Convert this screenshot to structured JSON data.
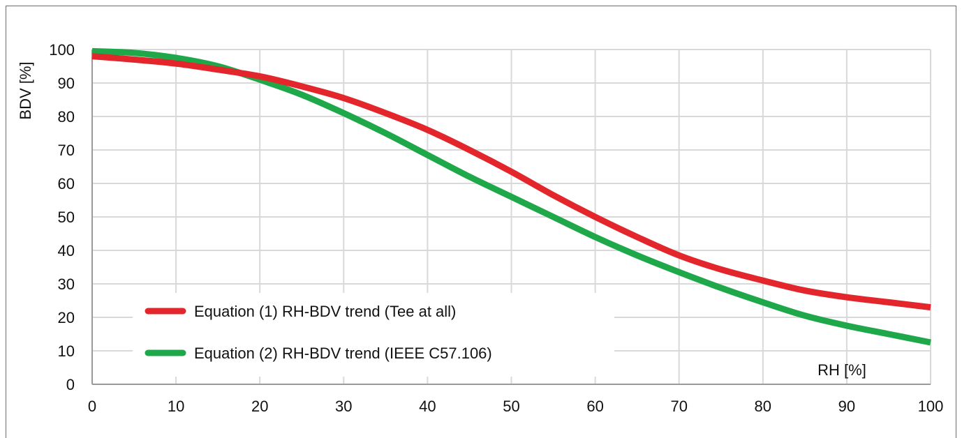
{
  "chart_data": {
    "type": "line",
    "xlabel": "RH [%]",
    "ylabel": "BDV [%]",
    "xlim": [
      0,
      100
    ],
    "ylim": [
      0,
      100
    ],
    "xticks": [
      "0",
      "10",
      "20",
      "30",
      "40",
      "50",
      "60",
      "70",
      "80",
      "90",
      "100"
    ],
    "yticks": [
      "0",
      "10",
      "20",
      "30",
      "40",
      "50",
      "60",
      "70",
      "80",
      "90",
      "100"
    ],
    "grid": true,
    "legend_position": "bottom-left",
    "x": [
      0,
      5,
      10,
      15,
      20,
      25,
      30,
      35,
      40,
      45,
      50,
      55,
      60,
      65,
      70,
      75,
      80,
      85,
      90,
      95,
      100
    ],
    "series": [
      {
        "name": "Equation (1) RH-BDV trend (Tee at all)",
        "color": "#e3262b",
        "values": [
          98,
          97,
          95.8,
          94,
          92,
          89,
          85.5,
          81,
          76,
          70,
          63.5,
          56.5,
          50,
          44,
          38.5,
          34.3,
          31,
          28,
          26,
          24.5,
          23
        ]
      },
      {
        "name": "Equation (2) RH-BDV trend (IEEE C57.106)",
        "color": "#1fa84a",
        "values": [
          99.5,
          99,
          97.5,
          95,
          91,
          86.5,
          81,
          75,
          68.5,
          62,
          56,
          50,
          44,
          38.5,
          33.5,
          28.8,
          24.5,
          20.5,
          17.5,
          15,
          12.5
        ]
      }
    ]
  }
}
